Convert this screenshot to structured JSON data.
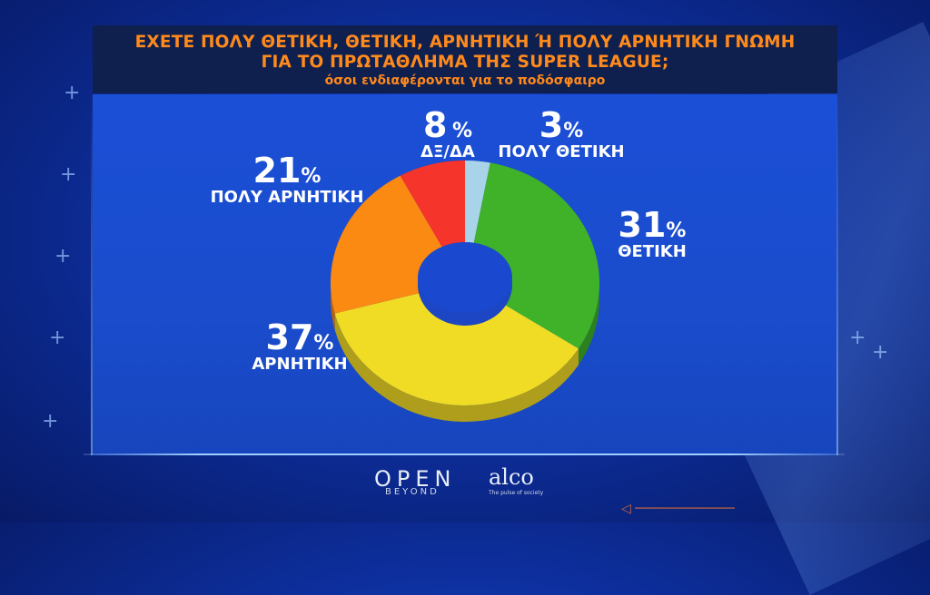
{
  "header": {
    "title_line1": "ΕΧΕΤΕ ΠΟΛΥ ΘΕΤΙΚΗ, ΘΕΤΙΚΗ, ΑΡΝΗΤΙΚΗ Ή ΠΟΛΥ ΑΡΝΗΤΙΚΗ ΓΝΩΜΗ",
    "title_line2": "ΓΙΑ ΤΟ ΠΡΩΤΑΘΛΗΜΑ ΤΗΣ SUPER LEAGUE;",
    "subtitle": "όσοι ενδιαφέρονται για το ποδόσφαιρο"
  },
  "chart_data": {
    "type": "pie",
    "donut": true,
    "title": "ΕΧΕΤΕ ΠΟΛΥ ΘΕΤΙΚΗ, ΘΕΤΙΚΗ, ΑΡΝΗΤΙΚΗ Ή ΠΟΛΥ ΑΡΝΗΤΙΚΗ ΓΝΩΜΗ ΓΙΑ ΤΟ ΠΡΩΤΑΘΛΗΜΑ ΤΗΣ SUPER LEAGUE;",
    "subtitle": "όσοι ενδιαφέρονται για το ποδόσφαιρο",
    "unit": "%",
    "slices": [
      {
        "label": "ΠΟΛΥ ΘΕΤΙΚΗ",
        "value": 3,
        "color": "#a9d3e8"
      },
      {
        "label": "ΘΕΤΙΚΗ",
        "value": 31,
        "color": "#3fb22a"
      },
      {
        "label": "ΑΡΝΗΤΙΚΗ",
        "value": 37,
        "color": "#f1dc25"
      },
      {
        "label": "ΠΟΛΥ ΑΡΝΗΤΙΚΗ",
        "value": 21,
        "color": "#fb8a12"
      },
      {
        "label": "ΔΞ/ΔΑ",
        "value": 8,
        "color": "#f5342b"
      }
    ]
  },
  "labels": {
    "dk": {
      "value": "8",
      "pct": "%",
      "name": "ΔΞ/ΔΑ"
    },
    "very_pos": {
      "value": "3",
      "pct": "%",
      "name": "ΠΟΛΥ ΘΕΤΙΚΗ"
    },
    "pos": {
      "value": "31",
      "pct": "%",
      "name": "ΘΕΤΙΚΗ"
    },
    "neg": {
      "value": "37",
      "pct": "%",
      "name": "ΑΡΝΗΤΙΚΗ"
    },
    "very_neg": {
      "value": "21",
      "pct": "%",
      "name": "ΠΟΛΥ ΑΡΝΗΤΙΚΗ"
    }
  },
  "footer": {
    "logo1_main": "OPEN",
    "logo1_sub": "BEYOND",
    "logo2_main": "alco",
    "logo2_sub": "The pulse of society"
  }
}
